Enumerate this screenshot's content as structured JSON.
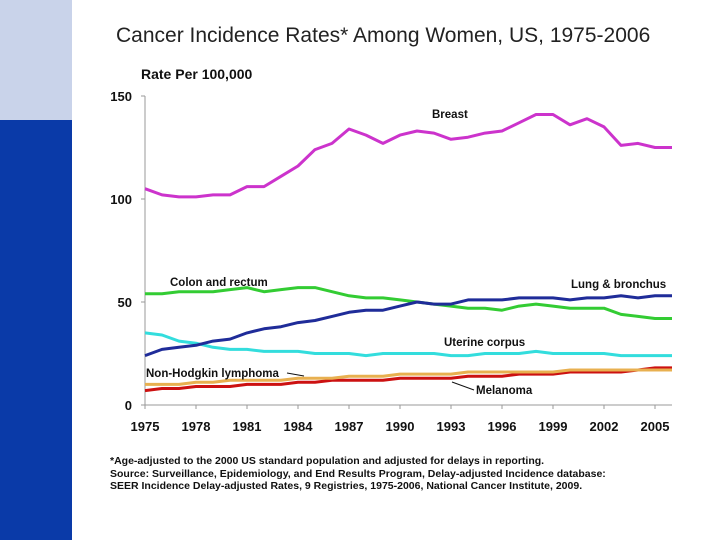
{
  "colors": {
    "accent_dark": "#0a3aa8",
    "accent_light": "#c9d3ea",
    "breast": "#cc33cc",
    "lung": "#1f2c99",
    "colon": "#33cc33",
    "uterine": "#33dddd",
    "nhl": "#e8b050",
    "melanoma": "#cc1111"
  },
  "chart_data": {
    "type": "line",
    "title": "Cancer Incidence Rates* Among Women, US, 1975-2006",
    "ylabel": "Rate Per 100,000",
    "xlabel": "",
    "xlim": [
      1975,
      2006
    ],
    "ylim": [
      0,
      150
    ],
    "x_ticks": [
      "1975",
      "1978",
      "1981",
      "1984",
      "1987",
      "1990",
      "1993",
      "1996",
      "1999",
      "2002",
      "2005"
    ],
    "y_ticks": [
      "0",
      "50",
      "100",
      "150"
    ],
    "x": [
      1975,
      1976,
      1977,
      1978,
      1979,
      1980,
      1981,
      1982,
      1983,
      1984,
      1985,
      1986,
      1987,
      1988,
      1989,
      1990,
      1991,
      1992,
      1993,
      1994,
      1995,
      1996,
      1997,
      1998,
      1999,
      2000,
      2001,
      2002,
      2003,
      2004,
      2005,
      2006
    ],
    "series": [
      {
        "name": "Breast",
        "label": "Breast",
        "color": "#cc33cc",
        "values": [
          105,
          102,
          101,
          101,
          102,
          102,
          106,
          106,
          111,
          116,
          124,
          127,
          134,
          131,
          127,
          131,
          133,
          132,
          129,
          130,
          132,
          133,
          137,
          141,
          141,
          136,
          139,
          135,
          126,
          127,
          125,
          125
        ]
      },
      {
        "name": "Lung & bronchus",
        "label": "Lung & bronchus",
        "color": "#1f2c99",
        "values": [
          24,
          27,
          28,
          29,
          31,
          32,
          35,
          37,
          38,
          40,
          41,
          43,
          45,
          46,
          46,
          48,
          50,
          49,
          49,
          51,
          51,
          51,
          52,
          52,
          52,
          51,
          52,
          52,
          53,
          52,
          53,
          53
        ]
      },
      {
        "name": "Colon and rectum",
        "label": "Colon and rectum",
        "color": "#33cc33",
        "values": [
          54,
          54,
          55,
          55,
          55,
          56,
          57,
          55,
          56,
          57,
          57,
          55,
          53,
          52,
          52,
          51,
          50,
          49,
          48,
          47,
          47,
          46,
          48,
          49,
          48,
          47,
          47,
          47,
          44,
          43,
          42,
          42
        ]
      },
      {
        "name": "Uterine corpus",
        "label": "Uterine corpus",
        "color": "#33dddd",
        "values": [
          35,
          34,
          31,
          30,
          28,
          27,
          27,
          26,
          26,
          26,
          25,
          25,
          25,
          24,
          25,
          25,
          25,
          25,
          24,
          24,
          25,
          25,
          25,
          26,
          25,
          25,
          25,
          25,
          24,
          24,
          24,
          24
        ]
      },
      {
        "name": "Non-Hodgkin lymphoma",
        "label": "Non-Hodgkin lymphoma",
        "color": "#e8b050",
        "values": [
          10,
          10,
          10,
          11,
          11,
          12,
          12,
          12,
          12,
          13,
          13,
          13,
          14,
          14,
          14,
          15,
          15,
          15,
          15,
          16,
          16,
          16,
          16,
          16,
          16,
          17,
          17,
          17,
          17,
          17,
          17,
          17
        ]
      },
      {
        "name": "Melanoma",
        "label": "Melanoma",
        "color": "#cc1111",
        "values": [
          7,
          8,
          8,
          9,
          9,
          9,
          10,
          10,
          10,
          11,
          11,
          12,
          12,
          12,
          12,
          13,
          13,
          13,
          13,
          14,
          14,
          14,
          15,
          15,
          15,
          16,
          16,
          16,
          16,
          17,
          18,
          18
        ]
      }
    ]
  },
  "footnote": {
    "line1": "*Age-adjusted to the 2000 US standard population and adjusted for delays in reporting.",
    "line2": "Source: Surveillance, Epidemiology, and End Results Program, Delay-adjusted Incidence database:",
    "line3": "SEER Incidence Delay-adjusted Rates, 9 Registries, 1975-2006, National Cancer Institute, 2009."
  }
}
